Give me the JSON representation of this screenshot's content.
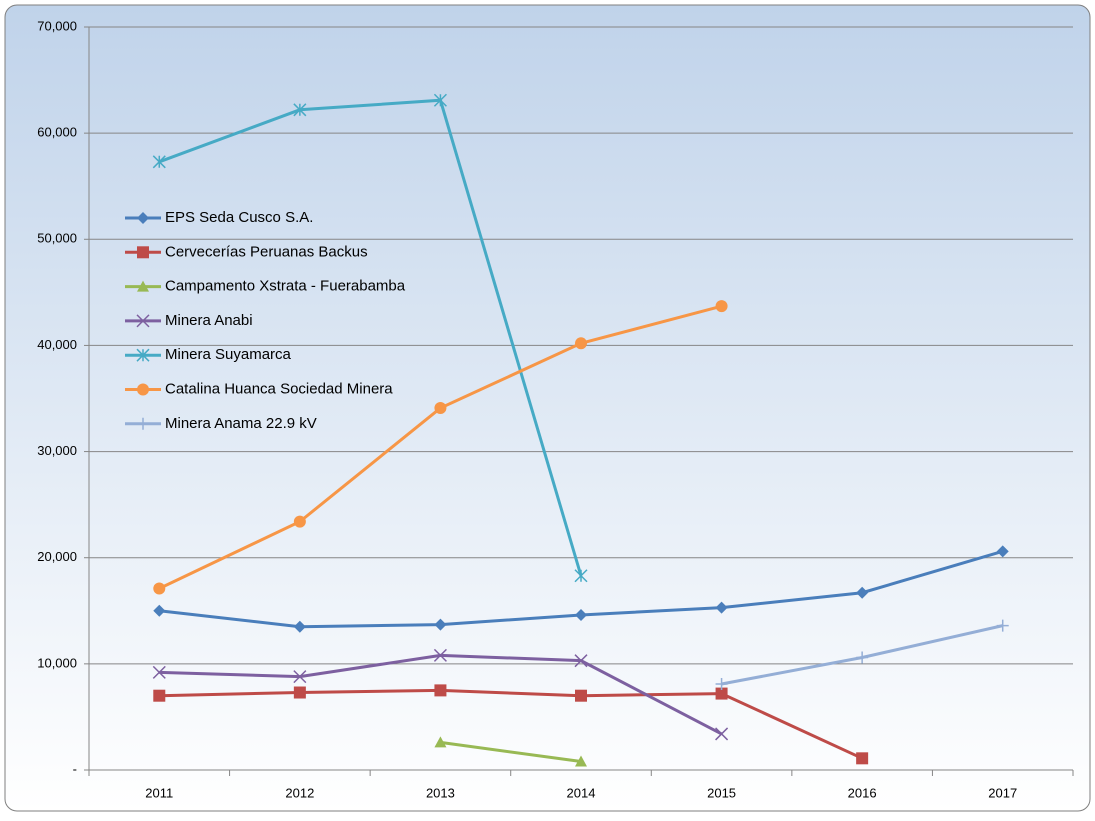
{
  "chart_data": {
    "type": "line",
    "categories": [
      "2011",
      "2012",
      "2013",
      "2014",
      "2015",
      "2016",
      "2017"
    ],
    "ylim": [
      0,
      70000
    ],
    "yticks": [
      {
        "value": 0,
        "label": "-"
      },
      {
        "value": 10000,
        "label": "10,000"
      },
      {
        "value": 20000,
        "label": "20,000"
      },
      {
        "value": 30000,
        "label": "30,000"
      },
      {
        "value": 40000,
        "label": "40,000"
      },
      {
        "value": 50000,
        "label": "50,000"
      },
      {
        "value": 60000,
        "label": "60,000"
      },
      {
        "value": 70000,
        "label": "70,000"
      }
    ],
    "grid": true,
    "legend": "upper-left",
    "series": [
      {
        "name": "EPS Seda Cusco S.A.",
        "color": "#4a7ebb",
        "marker": "diamond",
        "values": [
          15000,
          13500,
          13700,
          14600,
          15300,
          16700,
          20600
        ]
      },
      {
        "name": "Cervecerías Peruanas Backus",
        "color": "#be4b48",
        "marker": "square",
        "values": [
          7000,
          7300,
          7500,
          7000,
          7200,
          1100,
          null
        ]
      },
      {
        "name": "Campamento Xstrata - Fuerabamba",
        "color": "#98b954",
        "marker": "triangle",
        "values": [
          null,
          null,
          2600,
          800,
          null,
          null,
          null
        ]
      },
      {
        "name": "Minera Anabi",
        "color": "#7d60a0",
        "marker": "x",
        "values": [
          9200,
          8800,
          10800,
          10300,
          3400,
          null,
          null
        ]
      },
      {
        "name": "Minera Suyamarca",
        "color": "#46aac5",
        "marker": "star",
        "values": [
          57300,
          62200,
          63100,
          18300,
          null,
          null,
          null
        ]
      },
      {
        "name": "Catalina Huanca Sociedad Minera",
        "color": "#f79646",
        "marker": "circle",
        "values": [
          17100,
          23400,
          34100,
          40200,
          43700,
          null,
          null
        ]
      },
      {
        "name": "Minera Anama 22.9 kV",
        "color": "#94aed6",
        "marker": "plus",
        "values": [
          null,
          null,
          null,
          null,
          8100,
          10600,
          13600
        ]
      }
    ]
  }
}
